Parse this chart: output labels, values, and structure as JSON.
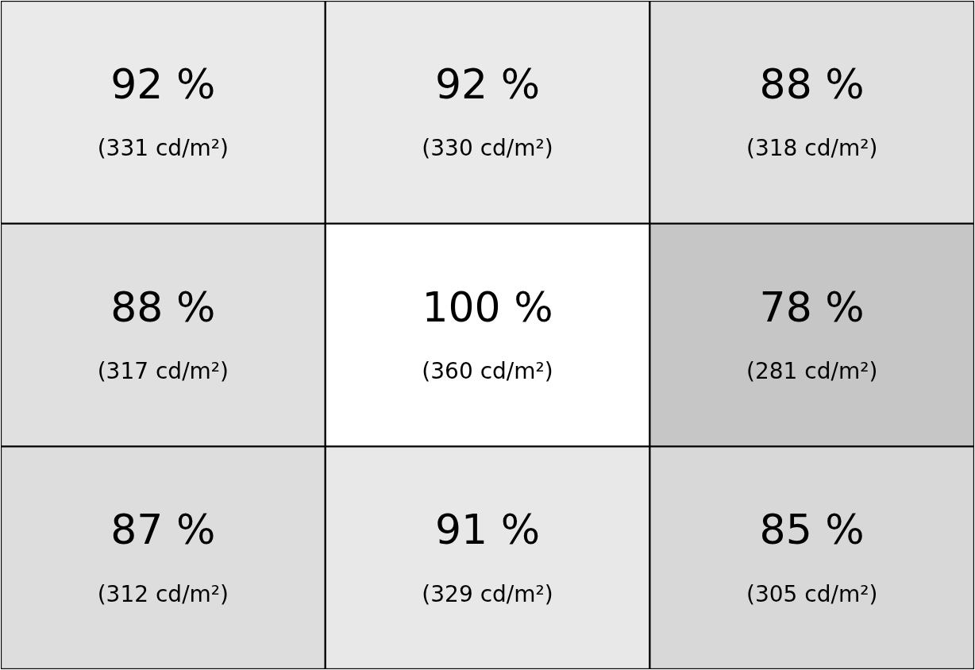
{
  "chart_data": {
    "type": "heatmap",
    "categories": [
      null,
      null,
      null
    ],
    "y_categories": [
      null,
      null,
      null
    ],
    "cells": [
      [
        92,
        92,
        88
      ],
      [
        88,
        100,
        78
      ],
      [
        87,
        91,
        85
      ]
    ],
    "cell_labels": [
      [
        "92 %",
        "92 %",
        "88 %"
      ],
      [
        "88 %",
        "100 %",
        "78 %"
      ],
      [
        "87 %",
        "91 %",
        "85 %"
      ]
    ],
    "annotations": [
      "(331 cd/m²)",
      "(330 cd/m²)",
      "(318 cd/m²)",
      "(317 cd/m²)",
      "(360 cd/m²)",
      "(281 cd/m²)",
      "(312 cd/m²)",
      "(329 cd/m²)",
      "(305 cd/m²)"
    ]
  }
}
